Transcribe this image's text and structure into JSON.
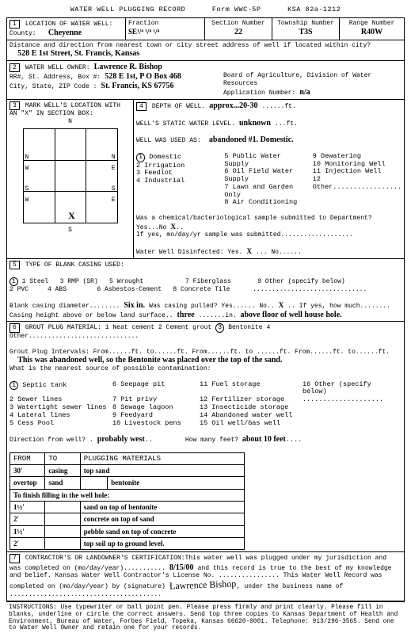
{
  "header": {
    "title": "WATER WELL PLUGGING RECORD",
    "form": "Form WWC-5P",
    "ksa": "KSA 82a-1212"
  },
  "loc": {
    "label": "LOCATION OF WATER WELL:",
    "countyLabel": "County:",
    "county": "Cheyenne",
    "fractionLabel": "Fraction",
    "frac": "SE¹/⁴     ¹/⁴     ¹/⁴",
    "sectionLabel": "Section  Number",
    "section": "22",
    "townshipLabel": "Township  Number",
    "township": "T3S",
    "rangeLabel": "Range Number",
    "range": "R40W",
    "distLabel": "Distance and direction from nearest town or city street address of well if located within city?",
    "dist": "528 E 1st Street, St. Francis, Kansas"
  },
  "owner": {
    "label": "WATER WELL OWNER:",
    "name": "Lawrence R. Bishop",
    "addrLabel": "RR#, St. Address, Box #:",
    "addr": "528 E 1st, P O Box 468",
    "cityLabel": "City, State, ZIP Code   :",
    "city": "St. Francis, KS 67756",
    "board": "Board of Agriculture, Division of Water Resources",
    "appLabel": "Application Number:",
    "app": "n/a"
  },
  "box3": {
    "label": "MARK WELL'S LOCATION WITH AN \"X\" IN SECTION BOX:"
  },
  "box4": {
    "depthLabel": "DEPTH OF WELL.",
    "depth": "approx...20-30",
    "ft": "......ft.",
    "staticLabel": "WELL'S STATIC WATER LEVEL.",
    "static": "unknown",
    "ft2": "...ft.",
    "usedLabel": "WELL WAS USED AS:",
    "used": "abandoned #1. Domestic.",
    "uses": [
      [
        "1 Domestic",
        "5 Public Water Supply",
        "9 Dewatering"
      ],
      [
        "2 Irrigation",
        "6 Oil Field Water Supply",
        "10 Monitoring Well"
      ],
      [
        "3 Feedlot",
        "7 Lawn and Garden Only",
        "11 Injection Well"
      ],
      [
        "4 Industrial",
        "8 Air Conditioning",
        "12 Other................."
      ]
    ],
    "chem": "Was a chemical/bacteriological sample submitted to Department? Yes...No",
    "chemAns": "X",
    "chemIf": "If yes, mo/day/yr sample was submitted...................",
    "disinf": "Water Well Disinfected:  Yes.",
    "disinfAns": "X",
    "disinf2": "... No......"
  },
  "box5": {
    "label": "TYPE OF BLANK CASING USED:",
    "opts": "1 Steel   3 RMP (SR)   5 Wrought           7 Fiberglass       9 Other (specify below)\n2 PVC     4 ABS        6 Asbestos-Cement   8 Concrete Tile      ..............................",
    "diam": "Blank casing diameter........",
    "diamVal": "Six in.",
    "pulled": " Was casing pulled?  Yes......  No..",
    "pulledAns": "X",
    "pulled2": ".. If yes, how much........",
    "heightLabel": "Casing height above or below land surface..",
    "heightVal": "three",
    "heightEnd": ".......in. ",
    "heightLoc": "above floor of well house hole."
  },
  "box6": {
    "label": "GROUT PLUG MATERIAL:  1 Neat cement    2 Cement grout   ",
    "opt3": "3",
    "opt3b": "Bentonite",
    "opt4": "    4 Other.............................",
    "intervals": "Grout Plug Intervals:   From......ft. to......ft.  From......ft. to ......ft.  From......ft. to......ft.",
    "note": "This was abandoned well, so the Bentonite was placed over the top of the sand.",
    "contamLabel": "What is the nearest source of possible contamination:",
    "contam": [
      [
        "1 Septic tank",
        "6 Seepage pit",
        "11 Fuel storage",
        "16 Other (specify below)"
      ],
      [
        "2 Sewer lines",
        "7 Pit privy",
        "12 Fertilizer storage",
        "...................."
      ],
      [
        "3 Watertight sewer lines",
        "8 Sewage lagoon",
        "13 Insecticide storage",
        ""
      ],
      [
        "4 Lateral lines",
        "9 Feedyard",
        "14 Abandoned water well",
        ""
      ],
      [
        "5 Cess Pool",
        "10 Livestock pens",
        "15 Oil well/Gas well",
        ""
      ]
    ],
    "dirLabel": "Direction from well? .",
    "dir": "probably west",
    "feetLabel": "How many feet? ",
    "feet": "about 10 feet",
    "tblHead": [
      "FROM",
      "TO",
      "PLUGGING MATERIALS"
    ],
    "tbl": [
      [
        "30'",
        "casing",
        "top          sand"
      ],
      [
        "overtop",
        "sand",
        "",
        "bentonite"
      ],
      [
        "To finish filling in the well hole:",
        "",
        "",
        ""
      ],
      [
        "1½'",
        "",
        "sand on top of bentonite"
      ],
      [
        "2'",
        "",
        "concrete on top of sand"
      ],
      [
        "1½'",
        "",
        "pebble sand on top of concrete"
      ],
      [
        "2'",
        "",
        "top soil up to ground level."
      ]
    ]
  },
  "box7": {
    "text1": "CONTRACTOR'S OR LANDOWNER'S CERTIFICATION:This water well was plugged under my jurisdiction and was completed on (mo/day/year)...........",
    "date": "8/15/00",
    "text2": "and this record is true to the best of my knowledge and belief.  Kansas Water Well Contractor's License No. ................  This Water Well Record was completed on (mo/day/year) by (signature)",
    "sig": "Lawrence Bishop",
    "text3": "under the business name of ........................................"
  },
  "instr": "INSTRUCTIONS:  Use typewriter or ball point pen.  Please press firmly and print clearly.  Please fill in blanks, underline or circle the correct answers.  Send top three copies to Kansas Department of Health and Environment, Bureau of Water, Forbes Field, Topeka, Kansas  66620-0001.   Telephone:   913/296-3565.  Send one to Water Well Owner and retain one for your records."
}
